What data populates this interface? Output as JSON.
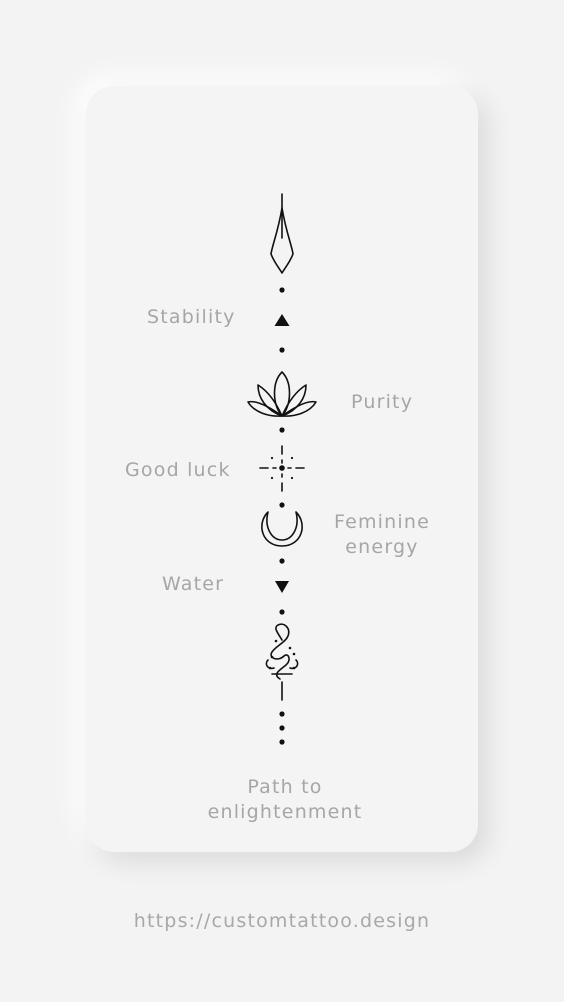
{
  "labels": {
    "stability": "Stability",
    "purity": "Purity",
    "good_luck": "Good luck",
    "feminine_line1": "Feminine",
    "feminine_line2": "energy",
    "water": "Water",
    "path_line1": "Path to",
    "path_line2": "enlightenment"
  },
  "footer": {
    "url": "https://customtattoo.design"
  },
  "colors": {
    "background": "#f3f3f3",
    "card": "#f4f4f4",
    "label": "#a6a6a6",
    "ink": "#111111"
  },
  "icons": [
    "spear-tip-icon",
    "triangle-up-icon",
    "lotus-icon",
    "sparkle-icon",
    "crescent-moon-icon",
    "triangle-down-icon",
    "unalome-icon"
  ]
}
